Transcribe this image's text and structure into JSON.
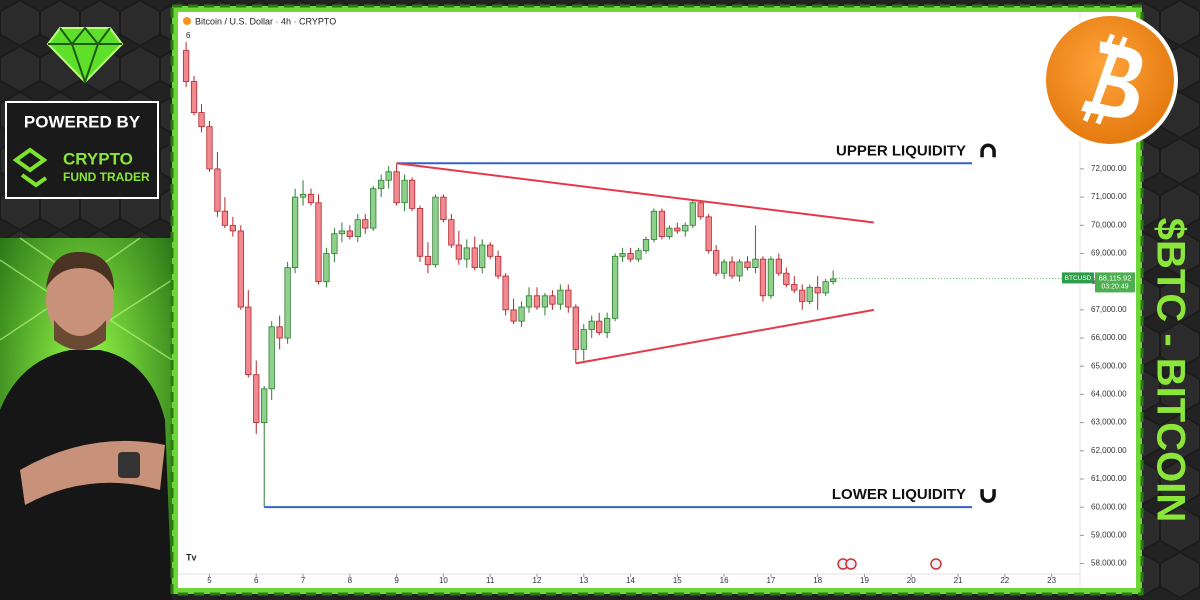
{
  "chart_data": {
    "type": "candlestick",
    "title": "Bitcoin / U.S. Dollar · 4h · CRYPTO",
    "indicator_count": "6",
    "xlim": [
      4.37,
      23.5
    ],
    "xticks": [
      5,
      6,
      7,
      8,
      9,
      10,
      11,
      12,
      13,
      14,
      15,
      16,
      17,
      18,
      19,
      20,
      21,
      22,
      23
    ],
    "ylim": [
      57700,
      77000
    ],
    "yticks": [
      {
        "value": 58000,
        "label": "58,000.00"
      },
      {
        "value": 59000,
        "label": "59,000.00"
      },
      {
        "value": 60000,
        "label": "60,000.00"
      },
      {
        "value": 61000,
        "label": "61,000.00"
      },
      {
        "value": 62000,
        "label": "62,000.00"
      },
      {
        "value": 63000,
        "label": "63,000.00"
      },
      {
        "value": 64000,
        "label": "64,000.00"
      },
      {
        "value": 65000,
        "label": "65,000.00"
      },
      {
        "value": 66000,
        "label": "66,000.00"
      },
      {
        "value": 67000,
        "label": "67,000.00"
      },
      {
        "value": 68000,
        "label": "68,000.00"
      },
      {
        "value": 69000,
        "label": "69,000.00"
      },
      {
        "value": 70000,
        "label": "70,000.00"
      },
      {
        "value": 71000,
        "label": "71,000.00"
      },
      {
        "value": 72000,
        "label": "72,000.00"
      }
    ],
    "up_color": "#8fd18c",
    "up_edge": "#2e7d32",
    "down_color": "#f08a90",
    "down_edge": "#b3262f",
    "candles": [
      {
        "x": 4.5,
        "open": 76200,
        "high": 76500,
        "low": 74900,
        "close": 75100
      },
      {
        "x": 4.67,
        "open": 75100,
        "high": 75300,
        "low": 73900,
        "close": 74000
      },
      {
        "x": 4.83,
        "open": 74000,
        "high": 74300,
        "low": 73300,
        "close": 73500
      },
      {
        "x": 5,
        "open": 73500,
        "high": 73700,
        "low": 71900,
        "close": 72000
      },
      {
        "x": 5.17,
        "open": 72000,
        "high": 72600,
        "low": 70300,
        "close": 70500
      },
      {
        "x": 5.33,
        "open": 70500,
        "high": 71000,
        "low": 69900,
        "close": 70000
      },
      {
        "x": 5.5,
        "open": 70000,
        "high": 70300,
        "low": 69600,
        "close": 69800
      },
      {
        "x": 5.67,
        "open": 69800,
        "high": 70000,
        "low": 67000,
        "close": 67100
      },
      {
        "x": 5.83,
        "open": 67100,
        "high": 67700,
        "low": 64600,
        "close": 64700
      },
      {
        "x": 6,
        "open": 64700,
        "high": 65200,
        "low": 62600,
        "close": 63000
      },
      {
        "x": 6.17,
        "open": 63000,
        "high": 64300,
        "low": 60000,
        "close": 64200
      },
      {
        "x": 6.33,
        "open": 64200,
        "high": 66600,
        "low": 63800,
        "close": 66400
      },
      {
        "x": 6.5,
        "open": 66400,
        "high": 66800,
        "low": 65600,
        "close": 66000
      },
      {
        "x": 6.67,
        "open": 66000,
        "high": 68700,
        "low": 65800,
        "close": 68500
      },
      {
        "x": 6.83,
        "open": 68500,
        "high": 71300,
        "low": 68300,
        "close": 71000
      },
      {
        "x": 7,
        "open": 71000,
        "high": 71600,
        "low": 70700,
        "close": 71100
      },
      {
        "x": 7.17,
        "open": 71100,
        "high": 71300,
        "low": 70700,
        "close": 70800
      },
      {
        "x": 7.33,
        "open": 70800,
        "high": 71100,
        "low": 67900,
        "close": 68000
      },
      {
        "x": 7.5,
        "open": 68000,
        "high": 69200,
        "low": 67800,
        "close": 69000
      },
      {
        "x": 7.67,
        "open": 69000,
        "high": 69900,
        "low": 68700,
        "close": 69700
      },
      {
        "x": 7.83,
        "open": 69700,
        "high": 70100,
        "low": 69400,
        "close": 69800
      },
      {
        "x": 8,
        "open": 69800,
        "high": 70000,
        "low": 69500,
        "close": 69600
      },
      {
        "x": 8.17,
        "open": 69600,
        "high": 70400,
        "low": 69400,
        "close": 70200
      },
      {
        "x": 8.33,
        "open": 70200,
        "high": 70400,
        "low": 69700,
        "close": 69900
      },
      {
        "x": 8.5,
        "open": 69900,
        "high": 71400,
        "low": 69800,
        "close": 71300
      },
      {
        "x": 8.67,
        "open": 71300,
        "high": 71800,
        "low": 71000,
        "close": 71600
      },
      {
        "x": 8.83,
        "open": 71600,
        "high": 72100,
        "low": 71300,
        "close": 71900
      },
      {
        "x": 9,
        "open": 71900,
        "high": 72200,
        "low": 70700,
        "close": 70800
      },
      {
        "x": 9.17,
        "open": 70800,
        "high": 71800,
        "low": 70500,
        "close": 71600
      },
      {
        "x": 9.33,
        "open": 71600,
        "high": 71700,
        "low": 70500,
        "close": 70600
      },
      {
        "x": 9.5,
        "open": 70600,
        "high": 70700,
        "low": 68700,
        "close": 68900
      },
      {
        "x": 9.67,
        "open": 68900,
        "high": 69400,
        "low": 68300,
        "close": 68600
      },
      {
        "x": 9.83,
        "open": 68600,
        "high": 71100,
        "low": 68500,
        "close": 71000
      },
      {
        "x": 10,
        "open": 71000,
        "high": 71100,
        "low": 70100,
        "close": 70200
      },
      {
        "x": 10.17,
        "open": 70200,
        "high": 70400,
        "low": 69200,
        "close": 69300
      },
      {
        "x": 10.33,
        "open": 69300,
        "high": 69800,
        "low": 68600,
        "close": 68800
      },
      {
        "x": 10.5,
        "open": 68800,
        "high": 69500,
        "low": 68500,
        "close": 69200
      },
      {
        "x": 10.67,
        "open": 69200,
        "high": 69600,
        "low": 68400,
        "close": 68500
      },
      {
        "x": 10.83,
        "open": 68500,
        "high": 69500,
        "low": 68300,
        "close": 69300
      },
      {
        "x": 11,
        "open": 69300,
        "high": 69400,
        "low": 68800,
        "close": 68900
      },
      {
        "x": 11.17,
        "open": 68900,
        "high": 69100,
        "low": 68100,
        "close": 68200
      },
      {
        "x": 11.33,
        "open": 68200,
        "high": 68300,
        "low": 66800,
        "close": 67000
      },
      {
        "x": 11.5,
        "open": 67000,
        "high": 67400,
        "low": 66500,
        "close": 66600
      },
      {
        "x": 11.67,
        "open": 66600,
        "high": 67300,
        "low": 66400,
        "close": 67100
      },
      {
        "x": 11.83,
        "open": 67100,
        "high": 67800,
        "low": 66900,
        "close": 67500
      },
      {
        "x": 12,
        "open": 67500,
        "high": 67800,
        "low": 67000,
        "close": 67100
      },
      {
        "x": 12.17,
        "open": 67100,
        "high": 67600,
        "low": 66800,
        "close": 67500
      },
      {
        "x": 12.33,
        "open": 67500,
        "high": 67700,
        "low": 67000,
        "close": 67200
      },
      {
        "x": 12.5,
        "open": 67200,
        "high": 67900,
        "low": 67000,
        "close": 67700
      },
      {
        "x": 12.67,
        "open": 67700,
        "high": 67900,
        "low": 66900,
        "close": 67100
      },
      {
        "x": 12.83,
        "open": 67100,
        "high": 67200,
        "low": 65100,
        "close": 65600
      },
      {
        "x": 13,
        "open": 65600,
        "high": 66500,
        "low": 65200,
        "close": 66300
      },
      {
        "x": 13.17,
        "open": 66300,
        "high": 66800,
        "low": 66000,
        "close": 66600
      },
      {
        "x": 13.33,
        "open": 66600,
        "high": 66900,
        "low": 66100,
        "close": 66200
      },
      {
        "x": 13.5,
        "open": 66200,
        "high": 66900,
        "low": 66000,
        "close": 66700
      },
      {
        "x": 13.67,
        "open": 66700,
        "high": 69000,
        "low": 66600,
        "close": 68900
      },
      {
        "x": 13.83,
        "open": 68900,
        "high": 69200,
        "low": 68700,
        "close": 69000
      },
      {
        "x": 14,
        "open": 69000,
        "high": 69200,
        "low": 68700,
        "close": 68800
      },
      {
        "x": 14.17,
        "open": 68800,
        "high": 69200,
        "low": 68700,
        "close": 69100
      },
      {
        "x": 14.33,
        "open": 69100,
        "high": 69600,
        "low": 69000,
        "close": 69500
      },
      {
        "x": 14.5,
        "open": 69500,
        "high": 70600,
        "low": 69400,
        "close": 70500
      },
      {
        "x": 14.67,
        "open": 70500,
        "high": 70600,
        "low": 69500,
        "close": 69600
      },
      {
        "x": 14.83,
        "open": 69600,
        "high": 70000,
        "low": 69500,
        "close": 69900
      },
      {
        "x": 15,
        "open": 69900,
        "high": 70100,
        "low": 69700,
        "close": 69800
      },
      {
        "x": 15.17,
        "open": 69800,
        "high": 70100,
        "low": 69600,
        "close": 70000
      },
      {
        "x": 15.33,
        "open": 70000,
        "high": 70900,
        "low": 69900,
        "close": 70800
      },
      {
        "x": 15.5,
        "open": 70800,
        "high": 70900,
        "low": 70200,
        "close": 70300
      },
      {
        "x": 15.67,
        "open": 70300,
        "high": 70400,
        "low": 69000,
        "close": 69100
      },
      {
        "x": 15.83,
        "open": 69100,
        "high": 69300,
        "low": 68200,
        "close": 68300
      },
      {
        "x": 16,
        "open": 68300,
        "high": 68800,
        "low": 68100,
        "close": 68700
      },
      {
        "x": 16.17,
        "open": 68700,
        "high": 68900,
        "low": 68100,
        "close": 68200
      },
      {
        "x": 16.33,
        "open": 68200,
        "high": 68800,
        "low": 68000,
        "close": 68700
      },
      {
        "x": 16.5,
        "open": 68700,
        "high": 68900,
        "low": 68400,
        "close": 68500
      },
      {
        "x": 16.67,
        "open": 68500,
        "high": 70000,
        "low": 68300,
        "close": 68800
      },
      {
        "x": 16.83,
        "open": 68800,
        "high": 68900,
        "low": 67300,
        "close": 67500
      },
      {
        "x": 17,
        "open": 67500,
        "high": 68900,
        "low": 67400,
        "close": 68800
      },
      {
        "x": 17.17,
        "open": 68800,
        "high": 69000,
        "low": 68200,
        "close": 68300
      },
      {
        "x": 17.33,
        "open": 68300,
        "high": 68500,
        "low": 67800,
        "close": 67900
      },
      {
        "x": 17.5,
        "open": 67900,
        "high": 68200,
        "low": 67600,
        "close": 67700
      },
      {
        "x": 17.67,
        "open": 67700,
        "high": 67900,
        "low": 67000,
        "close": 67300
      },
      {
        "x": 17.83,
        "open": 67300,
        "high": 67900,
        "low": 67200,
        "close": 67800
      },
      {
        "x": 18,
        "open": 67800,
        "high": 68200,
        "low": 67000,
        "close": 67600
      },
      {
        "x": 18.17,
        "open": 67600,
        "high": 68100,
        "low": 67500,
        "close": 68000
      },
      {
        "x": 18.33,
        "open": 68000,
        "high": 68400,
        "low": 67900,
        "close": 68100
      }
    ],
    "levels": [
      {
        "label": "UPPER LIQUIDITY",
        "value": 72200,
        "x": [
          9,
          21.3
        ]
      },
      {
        "label": "LOWER LIQUIDITY",
        "value": 60000,
        "x": [
          6.17,
          21.3
        ]
      }
    ],
    "level_color": "#3460c8",
    "trendlines": [
      {
        "x": [
          9,
          19.2
        ],
        "y": [
          72200,
          70100
        ]
      },
      {
        "x": [
          12.83,
          19.2
        ],
        "y": [
          65100,
          67000
        ]
      }
    ],
    "trend_color": "#e5394a",
    "symbol": "BTCUSD",
    "last_price": 68115.92,
    "last_price_label": "68,115.92",
    "countdown": "03:20:49"
  },
  "branding": {
    "powered_by": "POWERED BY",
    "brand_line1": "CRYPTO",
    "brand_line2": "FUND TRADER",
    "side_title": "$BTC - BITCOIN"
  }
}
